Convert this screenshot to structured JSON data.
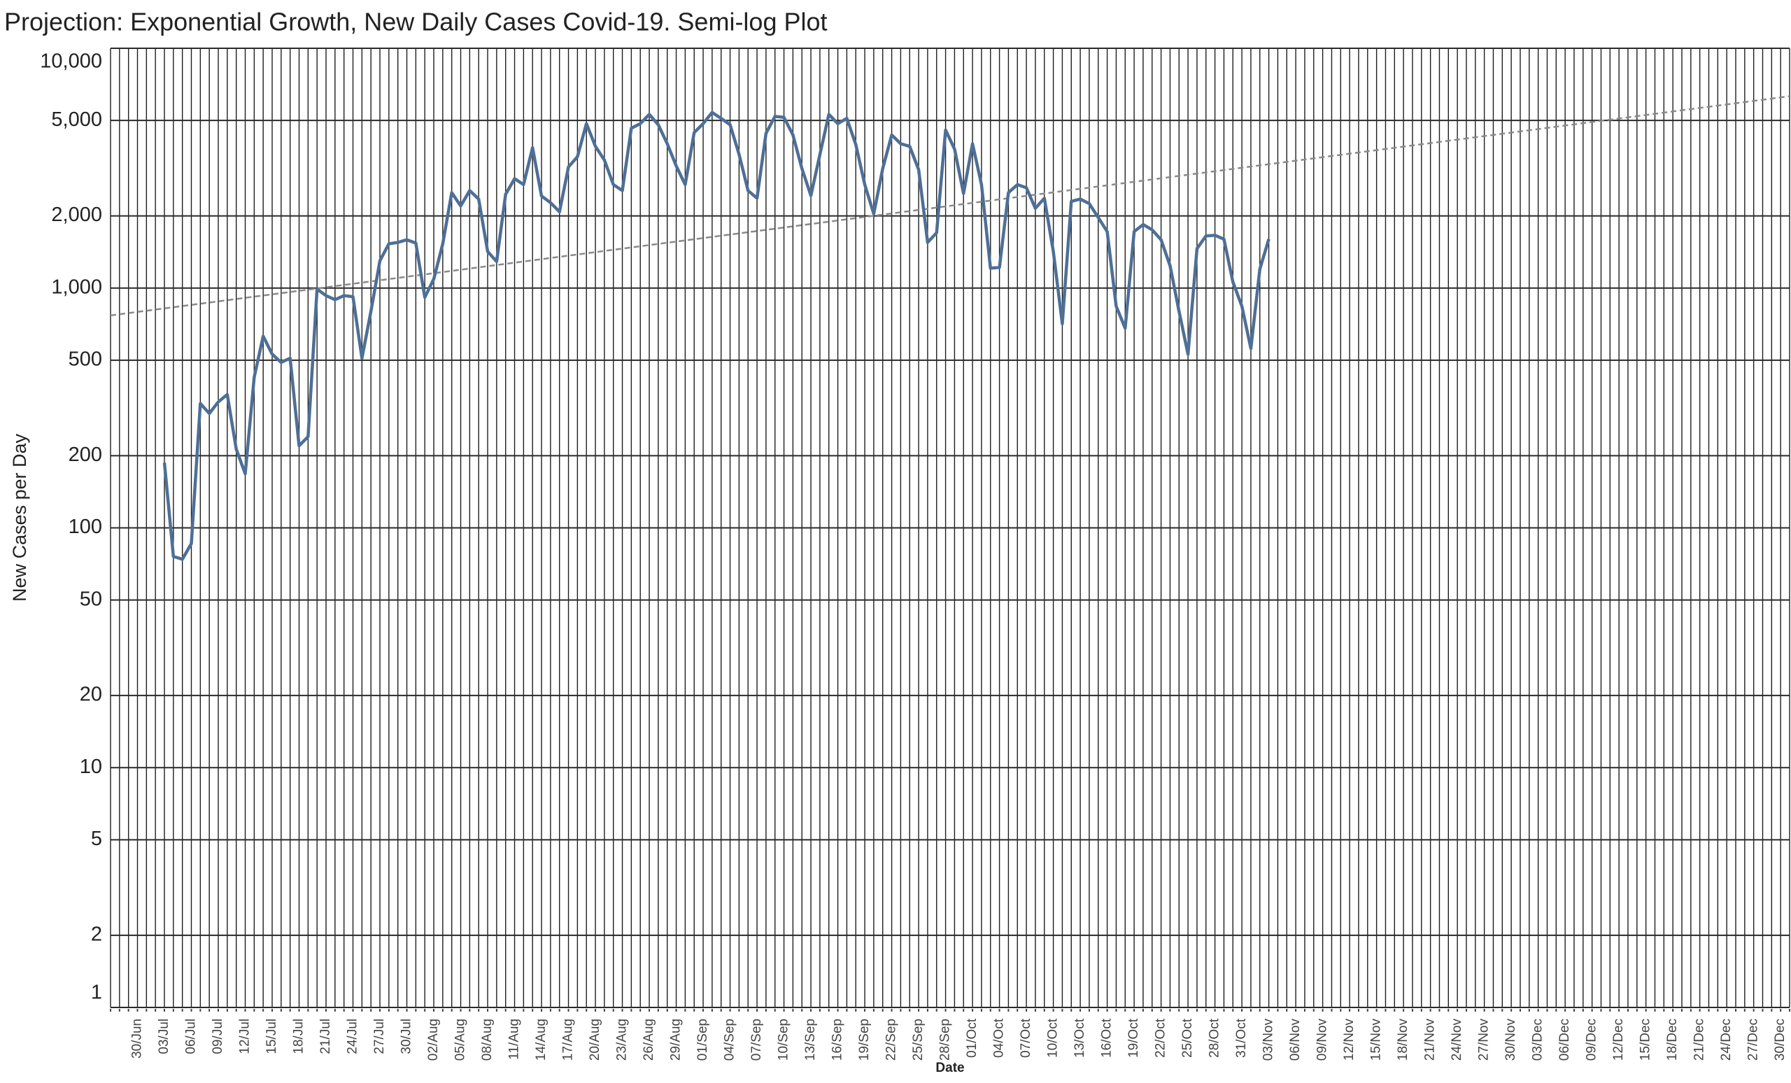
{
  "chart_data": {
    "type": "line",
    "title": "Projection: Exponential Growth,  New Daily Cases Covid-19.  Semi-log Plot",
    "y_label": "New Cases per Day",
    "x_label": "Date",
    "yscale": "log",
    "grid": true,
    "color": "#4e6f96",
    "ylim": [
      1,
      10000
    ],
    "yticks": [
      1,
      2,
      5,
      10,
      20,
      50,
      100,
      200,
      500,
      {
        "value": 1000,
        "label": "1,000"
      },
      {
        "value": 2000,
        "label": "2,000"
      },
      {
        "value": 5000,
        "label": "5,000"
      },
      {
        "value": 10000,
        "label": "10,000"
      }
    ],
    "categories": [
      null,
      null,
      null,
      "30/Jun",
      null,
      null,
      "03/Jul",
      null,
      null,
      "06/Jul",
      null,
      null,
      "09/Jul",
      null,
      null,
      "12/Jul",
      null,
      null,
      "15/Jul",
      null,
      null,
      "18/Jul",
      null,
      null,
      "21/Jul",
      null,
      null,
      "24/Jul",
      null,
      null,
      "27/Jul",
      null,
      null,
      "30/Jul",
      null,
      null,
      "02/Aug",
      null,
      null,
      "05/Aug",
      null,
      null,
      "08/Aug",
      null,
      null,
      "11/Aug",
      null,
      null,
      "14/Aug",
      null,
      null,
      "17/Aug",
      null,
      null,
      "20/Aug",
      null,
      null,
      "23/Aug",
      null,
      null,
      "26/Aug",
      null,
      null,
      "29/Aug",
      null,
      null,
      "01/Sep",
      null,
      null,
      "04/Sep",
      null,
      null,
      "07/Sep",
      null,
      null,
      "10/Sep",
      null,
      null,
      "13/Sep",
      null,
      null,
      "16/Sep",
      null,
      null,
      "19/Sep",
      null,
      null,
      "22/Sep",
      null,
      null,
      "25/Sep",
      null,
      null,
      "28/Sep",
      null,
      null,
      "01/Oct",
      null,
      null,
      "04/Oct",
      null,
      null,
      "07/Oct",
      null,
      null,
      "10/Oct",
      null,
      null,
      "13/Oct",
      null,
      null,
      "16/Oct",
      null,
      null,
      "19/Oct",
      null,
      null,
      "22/Oct",
      null,
      null,
      "25/Oct",
      null,
      null,
      "28/Oct",
      null,
      null,
      "31/Oct",
      null,
      null,
      "03/Nov",
      null,
      null,
      "06/Nov",
      null,
      null,
      "09/Nov",
      null,
      null,
      "12/Nov",
      null,
      null,
      "15/Nov",
      null,
      null,
      "18/Nov",
      null,
      null,
      "21/Nov",
      null,
      null,
      "24/Nov",
      null,
      null,
      "27/Nov",
      null,
      null,
      "30/Nov",
      null,
      null,
      "03/Dec",
      null,
      null,
      "06/Dec",
      null,
      null,
      "09/Dec",
      null,
      null,
      "12/Dec",
      null,
      null,
      "15/Dec",
      null,
      null,
      "18/Dec",
      null,
      null,
      "21/Dec",
      null,
      null,
      "24/Dec",
      null,
      null,
      "27/Dec",
      null,
      null,
      "30/Dec",
      null
    ],
    "values": [
      null,
      null,
      null,
      null,
      null,
      null,
      187,
      76,
      74,
      86,
      330,
      300,
      335,
      360,
      213,
      168,
      425,
      630,
      530,
      490,
      510,
      220,
      240,
      990,
      930,
      895,
      930,
      920,
      510,
      800,
      1300,
      1530,
      1550,
      1590,
      1540,
      915,
      1090,
      1530,
      2500,
      2200,
      2550,
      2350,
      1420,
      1290,
      2460,
      2860,
      2700,
      3850,
      2420,
      2270,
      2080,
      3200,
      3530,
      4850,
      3900,
      3420,
      2700,
      2550,
      4640,
      4850,
      5300,
      4800,
      4000,
      3230,
      2700,
      4450,
      4850,
      5400,
      5100,
      4800,
      3610,
      2550,
      2370,
      4420,
      5200,
      5150,
      4350,
      3150,
      2430,
      3600,
      5300,
      4850,
      5100,
      3970,
      2700,
      2040,
      3150,
      4350,
      4000,
      3900,
      3120,
      1550,
      1700,
      4560,
      3800,
      2480,
      4000,
      2700,
      1210,
      1220,
      2500,
      2700,
      2620,
      2150,
      2370,
      1420,
      710,
      2300,
      2350,
      2250,
      1970,
      1720,
      840,
      680,
      1720,
      1840,
      1750,
      1590,
      1240,
      800,
      530,
      1460,
      1650,
      1660,
      1600,
      1060,
      840,
      560,
      1200,
      1600,
      null,
      null,
      null,
      null,
      null,
      null,
      null,
      null,
      null,
      null,
      null,
      null,
      null,
      null,
      null,
      null,
      null,
      null,
      null,
      null,
      null,
      null,
      null,
      null,
      null,
      null,
      null,
      null,
      null,
      null,
      null,
      null,
      null,
      null,
      null,
      null,
      null,
      null,
      null,
      null,
      null,
      null,
      null,
      null,
      null,
      null,
      null,
      null,
      null,
      null,
      null,
      null,
      null,
      null,
      null,
      null,
      null,
      null
    ],
    "trend": {
      "values": [
        769,
        6310
      ],
      "color": "#8a8a8a",
      "dashed": true
    }
  }
}
